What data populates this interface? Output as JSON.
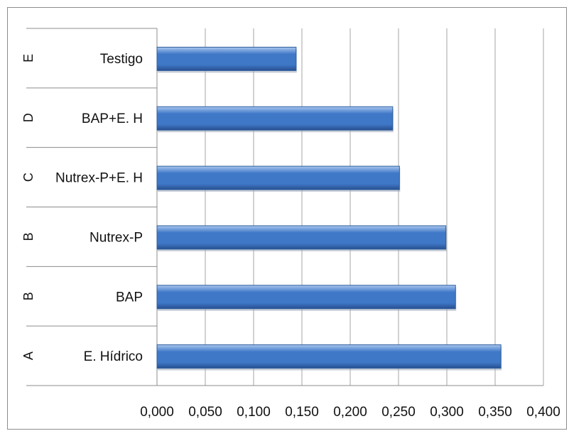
{
  "chart_data": {
    "type": "bar",
    "orientation": "horizontal",
    "categories": [
      "E. Hídrico",
      "BAP",
      "Nutrex-P",
      "Nutrex-P+E. H",
      "BAP+E. H",
      "Testigo"
    ],
    "groups": [
      "A",
      "B",
      "B",
      "C",
      "D",
      "E"
    ],
    "values": [
      0.356,
      0.309,
      0.299,
      0.251,
      0.244,
      0.144
    ],
    "xlim": [
      0,
      0.4
    ],
    "xticks": [
      "0,000",
      "0,050",
      "0,100",
      "0,150",
      "0,200",
      "0,250",
      "0,300",
      "0,350",
      "0,400"
    ],
    "grid": "vertical",
    "title": "",
    "xlabel": "",
    "ylabel": "",
    "bar_color": "#3f78c7",
    "bar_highlight": "#a9c6ef",
    "grid_color": "#a6a6a6"
  }
}
